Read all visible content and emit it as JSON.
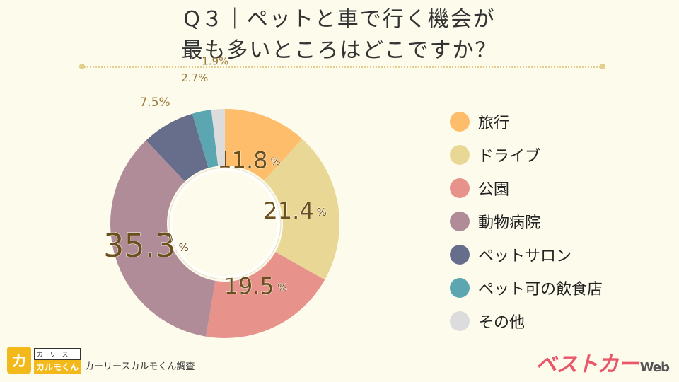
{
  "title_lines": [
    "Q３｜ペットと車で行く機会が",
    "最も多いところはどこですか？"
  ],
  "chart_data": {
    "type": "pie",
    "title": "Q３｜ペットと車で行く機会が最も多いところはどこですか？",
    "categories": [
      "旅行",
      "ドライブ",
      "公園",
      "動物病院",
      "ペットサロン",
      "ペット可の飲食店",
      "その他"
    ],
    "values": [
      11.8,
      21.4,
      19.5,
      35.3,
      7.5,
      2.7,
      1.9
    ],
    "labels": [
      "11.8",
      "21.4",
      "19.5",
      "35.3",
      "7.5",
      "2.7",
      "1.9"
    ],
    "unit": "%",
    "colors": [
      "#fdbd6b",
      "#e9d795",
      "#e8928c",
      "#b08c99",
      "#676e8b",
      "#5ba6b0",
      "#dcdcdc"
    ],
    "donut": true,
    "legend_position": "right"
  },
  "source": {
    "logo_icon_label": "カ",
    "logo_top": "カーリース",
    "logo_main": "カルモくん",
    "text": "カーリースカルモくん調査"
  },
  "brand": {
    "name": "ベストカー",
    "suffix": "Web"
  }
}
